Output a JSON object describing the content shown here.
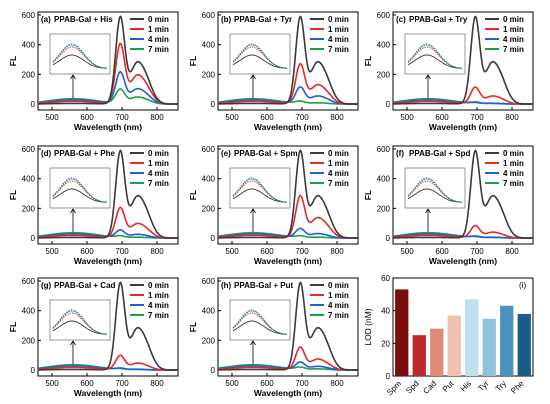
{
  "colors": {
    "0 min": "#3a3a3a",
    "1 min": "#e8282b",
    "4 min": "#1f5fd6",
    "7 min": "#17a24a"
  },
  "chart_data": [
    {
      "type": "line",
      "panel": "(a)",
      "title": "PPAB-Gal + His",
      "xlabel": "Wavelength (nm)",
      "ylabel": "FL",
      "xlim": [
        460,
        860
      ],
      "ylim": [
        -40,
        620
      ],
      "xticks": [
        500,
        600,
        700,
        800
      ],
      "yticks": [
        0,
        200,
        400,
        600
      ],
      "legend_position": "top-right",
      "legend_entries": [
        "0 min",
        "1 min",
        "4 min",
        "7 min"
      ],
      "series": [
        {
          "name": "0 min",
          "peak_x": 695,
          "peak_y": 580
        },
        {
          "name": "1 min",
          "peak_x": 695,
          "peak_y": 400
        },
        {
          "name": "4 min",
          "peak_x": 695,
          "peak_y": 210
        },
        {
          "name": "7 min",
          "peak_x": 695,
          "peak_y": 95
        }
      ]
    },
    {
      "type": "line",
      "panel": "(b)",
      "title": "PPAB-Gal + Tyr",
      "xlabel": "Wavelength (nm)",
      "ylabel": "FL",
      "xlim": [
        460,
        860
      ],
      "ylim": [
        -40,
        620
      ],
      "xticks": [
        500,
        600,
        700,
        800
      ],
      "yticks": [
        0,
        200,
        400,
        600
      ],
      "legend_position": "top-right",
      "legend_entries": [
        "0 min",
        "1 min",
        "4 min",
        "7 min"
      ],
      "series": [
        {
          "name": "0 min",
          "peak_x": 695,
          "peak_y": 580
        },
        {
          "name": "1 min",
          "peak_x": 695,
          "peak_y": 265
        },
        {
          "name": "4 min",
          "peak_x": 695,
          "peak_y": 110
        },
        {
          "name": "7 min",
          "peak_x": 695,
          "peak_y": 15
        }
      ]
    },
    {
      "type": "line",
      "panel": "(c)",
      "title": "PPAB-Gal + Try",
      "xlabel": "Wavelength (nm)",
      "ylabel": "FL",
      "xlim": [
        460,
        860
      ],
      "ylim": [
        -40,
        620
      ],
      "xticks": [
        500,
        600,
        700,
        800
      ],
      "yticks": [
        0,
        200,
        400,
        600
      ],
      "legend_position": "top-right",
      "legend_entries": [
        "0 min",
        "1 min",
        "4 min",
        "7 min"
      ],
      "series": [
        {
          "name": "0 min",
          "peak_x": 695,
          "peak_y": 580
        },
        {
          "name": "1 min",
          "peak_x": 695,
          "peak_y": 110
        },
        {
          "name": "4 min",
          "peak_x": 695,
          "peak_y": 10
        },
        {
          "name": "7 min",
          "peak_x": 695,
          "peak_y": 5
        }
      ]
    },
    {
      "type": "line",
      "panel": "(d)",
      "title": "PPAB-Gal + Phe",
      "xlabel": "Wavelength (nm)",
      "ylabel": "FL",
      "xlim": [
        460,
        860
      ],
      "ylim": [
        -40,
        620
      ],
      "xticks": [
        500,
        600,
        700,
        800
      ],
      "yticks": [
        0,
        200,
        400,
        600
      ],
      "legend_position": "top-right",
      "legend_entries": [
        "0 min",
        "1 min",
        "4 min",
        "7 min"
      ],
      "series": [
        {
          "name": "0 min",
          "peak_x": 695,
          "peak_y": 580
        },
        {
          "name": "1 min",
          "peak_x": 695,
          "peak_y": 200
        },
        {
          "name": "4 min",
          "peak_x": 695,
          "peak_y": 50
        },
        {
          "name": "7 min",
          "peak_x": 695,
          "peak_y": 10
        }
      ]
    },
    {
      "type": "line",
      "panel": "(e)",
      "title": "PPAB-Gal + Spm",
      "xlabel": "Wavelength (nm)",
      "ylabel": "FL",
      "xlim": [
        460,
        860
      ],
      "ylim": [
        -40,
        620
      ],
      "xticks": [
        500,
        600,
        700,
        800
      ],
      "yticks": [
        0,
        200,
        400,
        600
      ],
      "legend_position": "top-right",
      "legend_entries": [
        "0 min",
        "1 min",
        "4 min",
        "7 min"
      ],
      "series": [
        {
          "name": "0 min",
          "peak_x": 695,
          "peak_y": 580
        },
        {
          "name": "1 min",
          "peak_x": 695,
          "peak_y": 280
        },
        {
          "name": "4 min",
          "peak_x": 695,
          "peak_y": 60
        },
        {
          "name": "7 min",
          "peak_x": 695,
          "peak_y": 10
        }
      ]
    },
    {
      "type": "line",
      "panel": "(f)",
      "title": "PPAB-Gal + Spd",
      "xlabel": "Wavelength (nm)",
      "ylabel": "FL",
      "xlim": [
        460,
        860
      ],
      "ylim": [
        -40,
        620
      ],
      "xticks": [
        500,
        600,
        700,
        800
      ],
      "yticks": [
        0,
        200,
        400,
        600
      ],
      "legend_position": "top-right",
      "legend_entries": [
        "0 min",
        "1 min",
        "4 min",
        "7 min"
      ],
      "series": [
        {
          "name": "0 min",
          "peak_x": 695,
          "peak_y": 580
        },
        {
          "name": "1 min",
          "peak_x": 695,
          "peak_y": 80
        },
        {
          "name": "4 min",
          "peak_x": 695,
          "peak_y": 10
        },
        {
          "name": "7 min",
          "peak_x": 695,
          "peak_y": 5
        }
      ]
    },
    {
      "type": "line",
      "panel": "(g)",
      "title": "PPAB-Gal + Cad",
      "xlabel": "Wavelength (nm)",
      "ylabel": "FL",
      "xlim": [
        460,
        860
      ],
      "ylim": [
        -40,
        620
      ],
      "xticks": [
        500,
        600,
        700,
        800
      ],
      "yticks": [
        0,
        200,
        400,
        600
      ],
      "legend_position": "top-right",
      "legend_entries": [
        "0 min",
        "1 min",
        "4 min",
        "7 min"
      ],
      "series": [
        {
          "name": "0 min",
          "peak_x": 695,
          "peak_y": 580
        },
        {
          "name": "1 min",
          "peak_x": 695,
          "peak_y": 95
        },
        {
          "name": "4 min",
          "peak_x": 695,
          "peak_y": 10
        },
        {
          "name": "7 min",
          "peak_x": 695,
          "peak_y": 5
        }
      ]
    },
    {
      "type": "line",
      "panel": "(h)",
      "title": "PPAB-Gal + Put",
      "xlabel": "Wavelength (nm)",
      "ylabel": "FL",
      "xlim": [
        460,
        860
      ],
      "ylim": [
        -40,
        620
      ],
      "xticks": [
        500,
        600,
        700,
        800
      ],
      "yticks": [
        0,
        200,
        400,
        600
      ],
      "legend_position": "top-right",
      "legend_entries": [
        "0 min",
        "1 min",
        "4 min",
        "7 min"
      ],
      "series": [
        {
          "name": "0 min",
          "peak_x": 695,
          "peak_y": 580
        },
        {
          "name": "1 min",
          "peak_x": 695,
          "peak_y": 150
        },
        {
          "name": "4 min",
          "peak_x": 695,
          "peak_y": 50
        },
        {
          "name": "7 min",
          "peak_x": 695,
          "peak_y": 15
        }
      ]
    },
    {
      "type": "bar",
      "panel": "(i)",
      "title": "",
      "xlabel": "",
      "ylabel": "LOD (nM)",
      "ylim": [
        0,
        60
      ],
      "yticks": [
        0,
        20,
        40,
        60
      ],
      "categories": [
        "Spm",
        "Spd",
        "Cad",
        "Put",
        "His",
        "Tyr",
        "Try",
        "Phe"
      ],
      "values": [
        53,
        25,
        29,
        37,
        47,
        35,
        43,
        38
      ],
      "colors": [
        "#7b0d0d",
        "#c0292b",
        "#e08a78",
        "#efc1ae",
        "#bfe0ee",
        "#8fc3dc",
        "#4d93bf",
        "#1c5c86"
      ]
    }
  ]
}
